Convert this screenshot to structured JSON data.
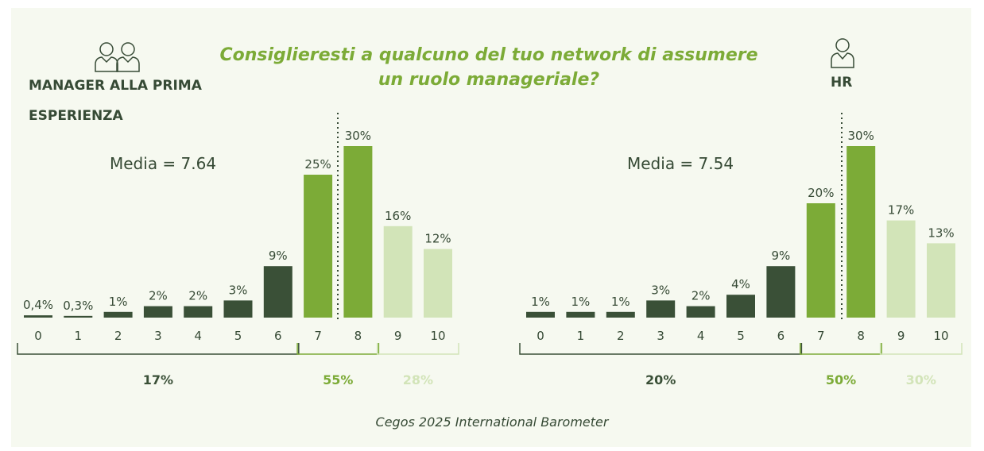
{
  "title": {
    "line1": "Consiglieresti a qualcuno del tuo network di assumere",
    "line2": "un ruolo manageriale?"
  },
  "footer": "Cegos 2025 International Barometer",
  "icons": {
    "left": "two-people-icon",
    "right": "person-icon"
  },
  "colors": {
    "detractor": "#3a5037",
    "passive": "#7cab37",
    "promoter": "#d2e4b8",
    "text": "#364a35"
  },
  "chart_data": [
    {
      "type": "bar",
      "group_line1": "MANAGER ALLA PRIMA",
      "group_line2": "ESPERIENZA",
      "mean_label": "Media = 7.64",
      "categories": [
        "0",
        "1",
        "2",
        "3",
        "4",
        "5",
        "6",
        "7",
        "8",
        "9",
        "10"
      ],
      "values": [
        0.4,
        0.3,
        1,
        2,
        2,
        3,
        9,
        25,
        30,
        16,
        12
      ],
      "value_labels": [
        "0,4%",
        "0,3%",
        "1%",
        "2%",
        "2%",
        "3%",
        "9%",
        "25%",
        "30%",
        "16%",
        "12%"
      ],
      "groups": [
        {
          "range": [
            0,
            6
          ],
          "total": "17%"
        },
        {
          "range": [
            7,
            8
          ],
          "total": "55%"
        },
        {
          "range": [
            9,
            10
          ],
          "total": "28%"
        }
      ]
    },
    {
      "type": "bar",
      "group_line1": "HR",
      "mean_label": "Media = 7.54",
      "categories": [
        "0",
        "1",
        "2",
        "3",
        "4",
        "5",
        "6",
        "7",
        "8",
        "9",
        "10"
      ],
      "values": [
        1,
        1,
        1,
        3,
        2,
        4,
        9,
        20,
        30,
        17,
        13
      ],
      "value_labels": [
        "1%",
        "1%",
        "1%",
        "3%",
        "2%",
        "4%",
        "9%",
        "20%",
        "30%",
        "17%",
        "13%"
      ],
      "groups": [
        {
          "range": [
            0,
            6
          ],
          "total": "20%"
        },
        {
          "range": [
            7,
            8
          ],
          "total": "50%"
        },
        {
          "range": [
            9,
            10
          ],
          "total": "30%"
        }
      ]
    }
  ]
}
